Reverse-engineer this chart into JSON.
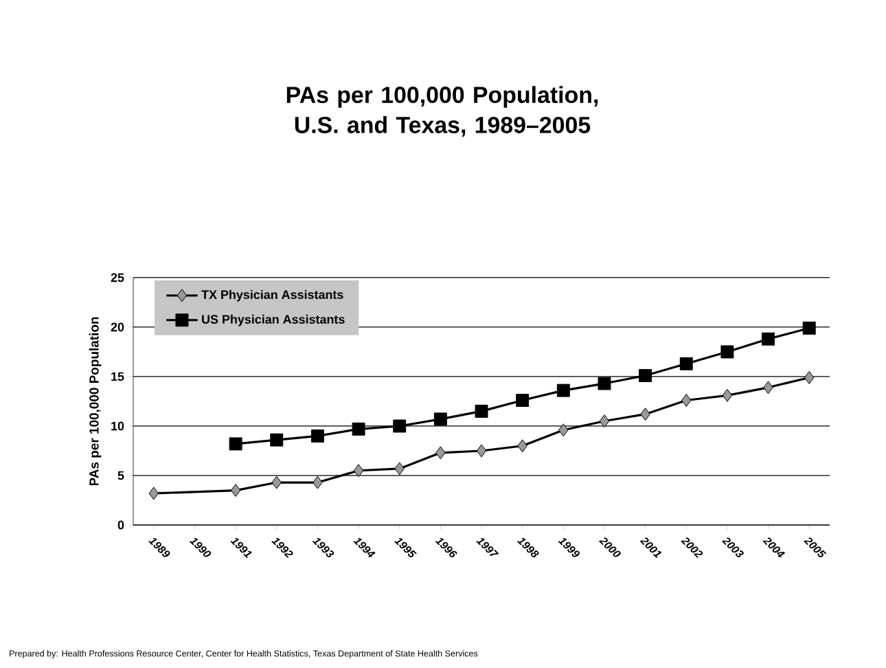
{
  "chart_data": {
    "type": "line",
    "title": "PAs per 100,000 Population, U.S. and Texas, 1989–2005",
    "ylabel": "PAs per 100,000 Population",
    "categories": [
      "1989",
      "1990",
      "1991",
      "1992",
      "1993",
      "1994",
      "1995",
      "1996",
      "1997",
      "1998",
      "1999",
      "2000",
      "2001",
      "2002",
      "2003",
      "2004",
      "2005"
    ],
    "series": [
      {
        "name": "TX Physician Assistants",
        "color": "#999999",
        "marker": "diamond",
        "values": [
          3.2,
          null,
          3.5,
          4.3,
          4.3,
          5.5,
          5.7,
          7.3,
          7.5,
          8.0,
          9.6,
          10.5,
          11.2,
          12.6,
          13.1,
          13.9,
          14.9
        ]
      },
      {
        "name": "US Physician Assistants",
        "color": "#000000",
        "marker": "square",
        "values": [
          null,
          null,
          8.2,
          8.6,
          9.0,
          9.7,
          10.0,
          10.7,
          11.5,
          12.6,
          13.6,
          14.3,
          15.1,
          16.3,
          17.5,
          18.8,
          19.9
        ]
      }
    ],
    "ylim": [
      0,
      25
    ],
    "yticks": [
      0,
      5,
      10,
      15,
      20,
      25
    ],
    "grid": "y",
    "legend": "top left",
    "annotations": [
      "Prepared by:  Health Professions Resource Center, Center for Health Statistics, Texas Department of State Health Services"
    ]
  }
}
